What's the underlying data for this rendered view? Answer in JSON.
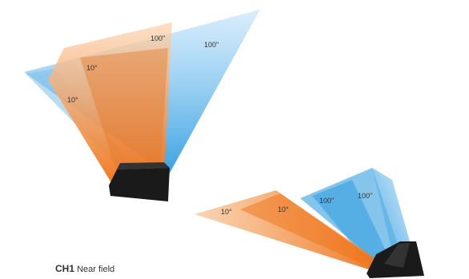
{
  "figures": [
    {
      "id": "projector-upright",
      "labels": {
        "orange_10": "10°",
        "orange_100": "100\"",
        "blue_10": "10°",
        "blue_100": "100\""
      }
    },
    {
      "id": "projector-tilted",
      "labels": {
        "orange_10a": "10°",
        "orange_10b": "10°",
        "blue_100a": "100\"",
        "blue_100b": "100\""
      }
    }
  ],
  "caption": {
    "channel": "CH1",
    "text": "Near field"
  },
  "colors": {
    "orange": "#F07A1E",
    "orange_light": "#F7B77F",
    "blue": "#2E9CE0",
    "blue_light": "#8ECBF0",
    "device": "#1A1A1A"
  }
}
